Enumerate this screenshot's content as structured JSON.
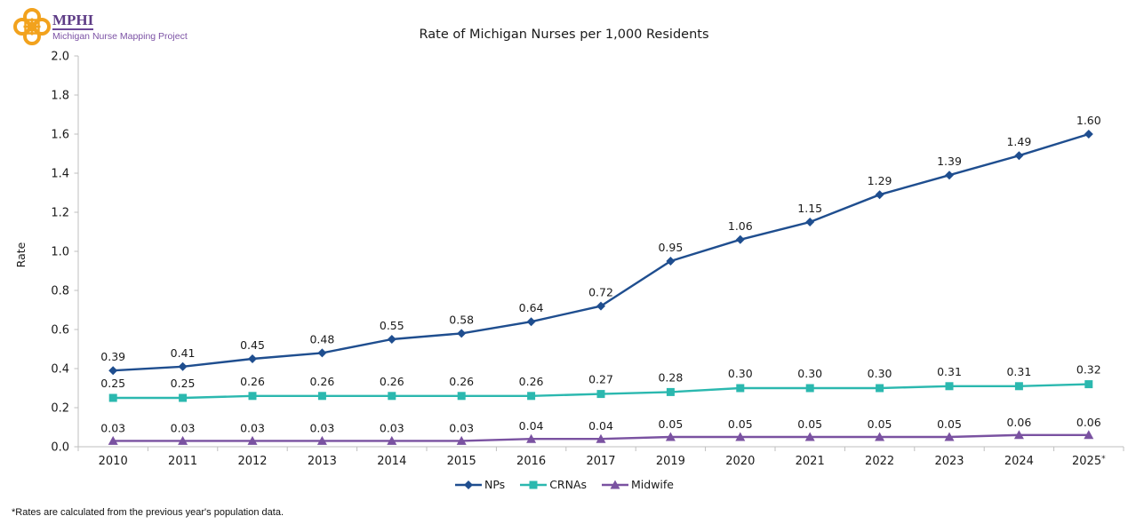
{
  "logo": {
    "abbr": "MPHI",
    "subtitle": "Michigan Nurse Mapping Project",
    "icon_color": "#f2a21d",
    "abbr_color": "#5e3c86",
    "subtitle_color": "#7c52a5"
  },
  "chart_data": {
    "type": "line",
    "title": "Rate of Michigan Nurses per 1,000 Residents",
    "xlabel": "",
    "ylabel": "Rate",
    "ylim": [
      0.0,
      2.0
    ],
    "ytick_step": 0.2,
    "grid": false,
    "legend_position": "bottom",
    "data_labels": true,
    "axis_color": "#bfbfbf",
    "label_color": "#1a1a1a",
    "categories": [
      "2010",
      "2011",
      "2012",
      "2013",
      "2014",
      "2015",
      "2016",
      "2017",
      "2019",
      "2020",
      "2021",
      "2022",
      "2023",
      "2024",
      "2025*"
    ],
    "series": [
      {
        "name": "NPs",
        "marker": "diamond",
        "color": "#1f4e8f",
        "values": [
          0.39,
          0.41,
          0.45,
          0.48,
          0.55,
          0.58,
          0.64,
          0.72,
          0.95,
          1.06,
          1.15,
          1.29,
          1.39,
          1.49,
          1.6
        ]
      },
      {
        "name": "CRNAs",
        "marker": "square",
        "color": "#2bb8af",
        "values": [
          0.25,
          0.25,
          0.26,
          0.26,
          0.26,
          0.26,
          0.26,
          0.27,
          0.28,
          0.3,
          0.3,
          0.3,
          0.31,
          0.31,
          0.32
        ]
      },
      {
        "name": "Midwife",
        "marker": "triangle",
        "color": "#7a52a1",
        "values": [
          0.03,
          0.03,
          0.03,
          0.03,
          0.03,
          0.03,
          0.04,
          0.04,
          0.05,
          0.05,
          0.05,
          0.05,
          0.05,
          0.06,
          0.06
        ]
      }
    ]
  },
  "footnote": "*Rates are calculated from the previous year's population data."
}
